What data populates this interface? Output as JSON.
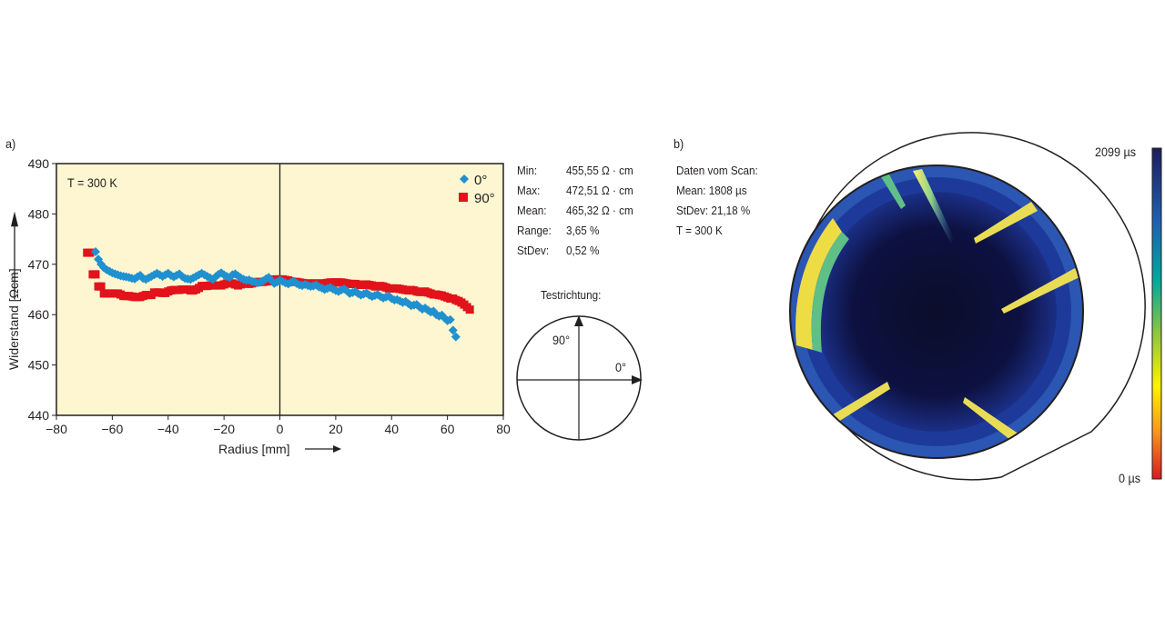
{
  "panel_a": {
    "tag": "a)",
    "note": "T = 300 K",
    "stats": [
      {
        "key": "Min:",
        "value": "455,55 Ω · cm"
      },
      {
        "key": "Max:",
        "value": "472,51 Ω · cm"
      },
      {
        "key": "Mean:",
        "value": "465,32 Ω · cm"
      },
      {
        "key": "Range:",
        "value": "3,65 %"
      },
      {
        "key": "StDev:",
        "value": "0,52 %"
      }
    ],
    "direction": {
      "title": "Testrichtung:",
      "label_90": "90°",
      "label_0": "0°"
    }
  },
  "panel_b": {
    "tag": "b)",
    "info": [
      "Daten vom Scan:",
      "Mean: 1808 µs",
      "StDev: 21,18 %",
      "T = 300 K"
    ],
    "colorbar": {
      "max_label": "2099 µs",
      "min_label": "0 µs",
      "max": 2099,
      "min": 0
    }
  },
  "colors": {
    "plot_bg": "#fdf6d0",
    "series_0": "#1f90d0",
    "series_90": "#e2131b",
    "colorbar_stops": [
      "#d71921",
      "#f7941d",
      "#fff200",
      "#8dc63f",
      "#00a99d",
      "#1f5fb0",
      "#1c1e5c"
    ]
  },
  "chart_data": {
    "type": "scatter",
    "title": "",
    "xlabel": "Radius [mm]",
    "ylabel": "Widerstand [Ωcm]",
    "xlim": [
      -80,
      80
    ],
    "ylim": [
      440,
      490
    ],
    "xticks": [
      -80,
      -60,
      -40,
      -20,
      0,
      20,
      40,
      60,
      80
    ],
    "yticks": [
      440,
      450,
      460,
      470,
      480,
      490
    ],
    "legend_position": "top-right",
    "series": [
      {
        "name": "0°",
        "marker": "diamond",
        "x": [
          -66,
          -65,
          -64,
          -63,
          -62,
          -61,
          -60,
          -59,
          -58,
          -57,
          -56,
          -55,
          -54,
          -53,
          -52,
          -51,
          -50,
          -49,
          -48,
          -47,
          -46,
          -45,
          -44,
          -43,
          -42,
          -41,
          -40,
          -39,
          -38,
          -37,
          -36,
          -35,
          -34,
          -33,
          -32,
          -31,
          -30,
          -29,
          -28,
          -27,
          -26,
          -25,
          -24,
          -23,
          -22,
          -21,
          -20,
          -19,
          -18,
          -17,
          -16,
          -15,
          -14,
          -13,
          -12,
          -11,
          -10,
          -9,
          -8,
          -7,
          -6,
          -5,
          -4,
          -3,
          -2,
          -1,
          0,
          1,
          2,
          3,
          4,
          5,
          6,
          7,
          8,
          9,
          10,
          11,
          12,
          13,
          14,
          15,
          16,
          17,
          18,
          19,
          20,
          21,
          22,
          23,
          24,
          25,
          26,
          27,
          28,
          29,
          30,
          31,
          32,
          33,
          34,
          35,
          36,
          37,
          38,
          39,
          40,
          41,
          42,
          43,
          44,
          45,
          46,
          47,
          48,
          49,
          50,
          51,
          52,
          53,
          54,
          55,
          56,
          57,
          58,
          59,
          60,
          61,
          62,
          63
        ],
        "y": [
          472.5,
          471.0,
          470.0,
          469.3,
          468.9,
          468.6,
          468.3,
          468.1,
          467.9,
          467.7,
          467.6,
          467.5,
          467.4,
          467.2,
          467.1,
          467.5,
          467.8,
          467.2,
          467.0,
          467.3,
          467.6,
          467.9,
          468.2,
          467.9,
          467.6,
          467.9,
          468.2,
          467.8,
          467.5,
          467.8,
          468.1,
          467.6,
          467.2,
          467.1,
          467.0,
          467.3,
          467.6,
          467.9,
          468.2,
          467.9,
          467.6,
          467.3,
          467.0,
          467.5,
          468.0,
          468.3,
          467.9,
          467.6,
          467.4,
          467.9,
          468.1,
          467.7,
          467.3,
          467.0,
          466.8,
          466.9,
          466.6,
          466.5,
          466.3,
          466.4,
          466.7,
          467.1,
          467.4,
          466.8,
          466.2,
          466.5,
          466.8,
          466.6,
          466.3,
          466.1,
          466.4,
          466.6,
          466.2,
          465.9,
          465.8,
          466.0,
          465.8,
          465.6,
          465.7,
          465.9,
          465.5,
          465.3,
          465.0,
          465.2,
          465.4,
          465.1,
          464.8,
          464.6,
          464.9,
          465.1,
          464.7,
          464.2,
          464.4,
          464.6,
          464.2,
          463.9,
          464.1,
          464.3,
          463.9,
          463.6,
          463.8,
          464.0,
          463.6,
          463.3,
          463.5,
          463.7,
          463.2,
          462.9,
          463.0,
          462.7,
          462.4,
          462.6,
          462.2,
          461.8,
          461.9,
          462.0,
          461.5,
          461.1,
          461.3,
          460.9,
          460.5,
          460.7,
          460.0,
          459.7,
          459.9,
          459.3,
          458.8,
          459.0,
          456.9,
          455.6
        ]
      },
      {
        "name": "90°",
        "marker": "square",
        "x": [
          -69,
          -68,
          -67,
          -66,
          -65,
          -64,
          -63,
          -62,
          -61,
          -60,
          -59,
          -58,
          -57,
          -56,
          -55,
          -54,
          -53,
          -52,
          -51,
          -50,
          -49,
          -48,
          -47,
          -46,
          -45,
          -44,
          -43,
          -42,
          -41,
          -40,
          -39,
          -38,
          -37,
          -36,
          -35,
          -34,
          -33,
          -32,
          -31,
          -30,
          -29,
          -28,
          -27,
          -26,
          -25,
          -24,
          -23,
          -22,
          -21,
          -20,
          -19,
          -18,
          -17,
          -16,
          -15,
          -14,
          -13,
          -12,
          -11,
          -10,
          -9,
          -8,
          -7,
          -6,
          -5,
          -4,
          -3,
          -2,
          -1,
          0,
          1,
          2,
          3,
          4,
          5,
          6,
          7,
          8,
          9,
          10,
          11,
          12,
          13,
          14,
          15,
          16,
          17,
          18,
          19,
          20,
          21,
          22,
          23,
          24,
          25,
          26,
          27,
          28,
          29,
          30,
          31,
          32,
          33,
          34,
          35,
          36,
          37,
          38,
          39,
          40,
          41,
          42,
          43,
          44,
          45,
          46,
          47,
          48,
          49,
          50,
          51,
          52,
          53,
          54,
          55,
          56,
          57,
          58,
          59,
          60,
          61,
          62,
          63,
          64,
          65,
          66,
          67,
          68
        ],
        "y": [
          472.3,
          472.3,
          468.0,
          468.0,
          465.6,
          465.6,
          464.2,
          464.2,
          464.2,
          464.2,
          464.2,
          464.2,
          464.0,
          463.7,
          463.7,
          463.7,
          463.6,
          463.5,
          463.5,
          463.5,
          463.7,
          463.9,
          463.9,
          463.9,
          464.4,
          464.4,
          464.4,
          464.3,
          464.3,
          464.6,
          464.8,
          464.9,
          464.9,
          464.9,
          465.0,
          465.0,
          465.0,
          464.8,
          464.8,
          465.0,
          465.3,
          465.7,
          465.7,
          465.7,
          465.8,
          465.8,
          465.8,
          465.8,
          465.8,
          466.0,
          466.2,
          466.2,
          466.2,
          466.0,
          465.8,
          466.0,
          466.2,
          466.2,
          466.1,
          466.2,
          466.4,
          466.5,
          466.5,
          466.5,
          466.6,
          466.6,
          466.8,
          467.0,
          467.0,
          467.0,
          467.0,
          466.9,
          466.8,
          466.6,
          466.5,
          466.5,
          466.4,
          466.3,
          466.2,
          466.2,
          466.2,
          466.2,
          466.2,
          466.2,
          466.2,
          466.2,
          466.3,
          466.4,
          466.4,
          466.4,
          466.4,
          466.4,
          466.3,
          466.2,
          466.1,
          466.1,
          466.1,
          466.0,
          465.9,
          465.9,
          466.0,
          465.9,
          465.8,
          465.6,
          465.6,
          465.7,
          465.6,
          465.4,
          465.2,
          465.2,
          465.2,
          465.2,
          465.1,
          465.0,
          464.9,
          464.8,
          464.9,
          464.8,
          464.6,
          464.5,
          464.5,
          464.6,
          464.4,
          464.2,
          464.0,
          464.0,
          463.9,
          463.8,
          463.6,
          463.4,
          463.2,
          463.2,
          462.9,
          462.7,
          462.4,
          462.0,
          461.5,
          461.0
        ]
      }
    ]
  }
}
